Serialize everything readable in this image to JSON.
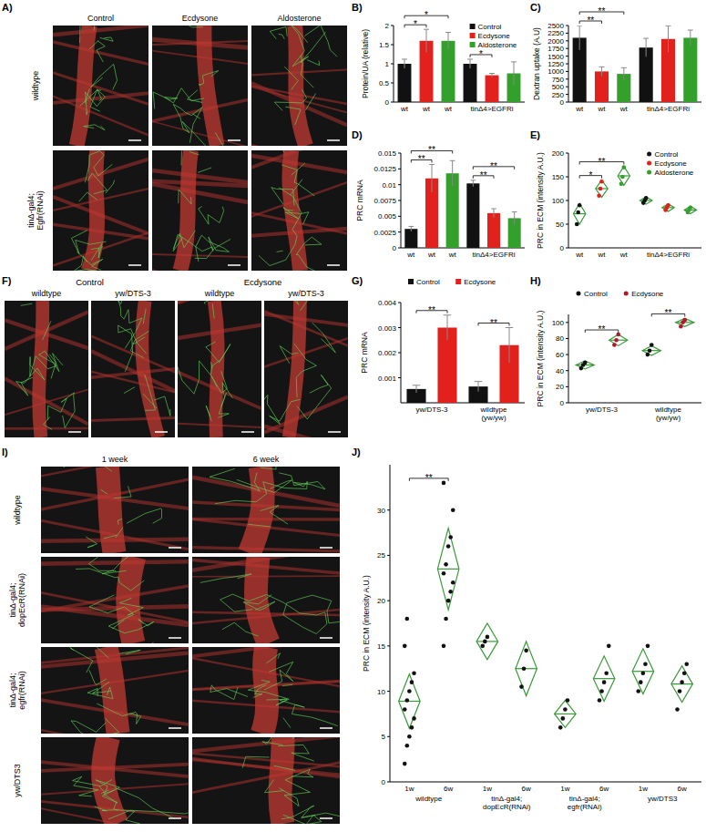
{
  "chart_data": [
    {
      "type": "bar",
      "panel_label": "B)",
      "y_label": "Protein/UA (relative)",
      "categories": [
        "wt",
        "wt",
        "wt",
        null,
        null,
        null
      ],
      "x_groups": [
        {
          "label": "tinΔ4>EGFRi",
          "span": [
            3,
            5
          ]
        }
      ],
      "values": [
        1.0,
        1.6,
        1.6,
        1.0,
        0.7,
        0.75
      ],
      "errors": [
        0.12,
        0.3,
        0.22,
        0.12,
        0.05,
        0.3
      ],
      "colors": [
        "#111111",
        "#e3211c",
        "#33a02c",
        "#111111",
        "#e3211c",
        "#33a02c"
      ],
      "ylim": [
        0,
        2
      ],
      "yticks": [
        0,
        0.5,
        1,
        1.5,
        2
      ],
      "legend": "upper right",
      "legend_items": [
        {
          "name": "Control",
          "color": "#111111"
        },
        {
          "name": "Ecdysone",
          "color": "#e3211c"
        },
        {
          "name": "Aldosterone",
          "color": "#33a02c"
        }
      ],
      "significance": [
        {
          "label": "*",
          "between": [
            0,
            1
          ]
        },
        {
          "label": "*",
          "between": [
            0,
            2
          ]
        },
        {
          "label": "*",
          "between": [
            3,
            4
          ]
        }
      ]
    },
    {
      "type": "bar",
      "panel_label": "C)",
      "y_label": "Dextran uptake (A.U)",
      "categories": [
        "wt",
        "wt",
        "wt",
        null,
        null,
        null
      ],
      "x_groups": [
        {
          "label": "tinΔ4>EGFRi",
          "span": [
            3,
            5
          ]
        }
      ],
      "values": [
        2100,
        1000,
        920,
        1780,
        2060,
        2100
      ],
      "errors": [
        400,
        150,
        200,
        300,
        430,
        250
      ],
      "colors": [
        "#111111",
        "#e3211c",
        "#33a02c",
        "#111111",
        "#e3211c",
        "#33a02c"
      ],
      "ylim": [
        0,
        2500
      ],
      "yticks": [
        0,
        250,
        500,
        750,
        1000,
        1250,
        1500,
        1750,
        2000,
        2250,
        2500
      ],
      "significance": [
        {
          "label": "**",
          "between": [
            0,
            1
          ]
        },
        {
          "label": "**",
          "between": [
            0,
            2
          ]
        }
      ]
    },
    {
      "type": "bar",
      "panel_label": "D)",
      "y_label": "PRC mRNA",
      "categories": [
        "wt",
        "wt",
        "wt",
        null,
        null,
        null
      ],
      "x_groups": [
        {
          "label": "tinΔ4>EGFRi",
          "span": [
            3,
            5
          ]
        }
      ],
      "values": [
        0.003,
        0.011,
        0.0118,
        0.0102,
        0.0055,
        0.0047
      ],
      "errors": [
        0.0004,
        0.0022,
        0.002,
        0.0005,
        0.0007,
        0.001
      ],
      "colors": [
        "#111111",
        "#e3211c",
        "#33a02c",
        "#111111",
        "#e3211c",
        "#33a02c"
      ],
      "ylim": [
        0,
        0.015
      ],
      "yticks": [
        0,
        0.0025,
        0.005,
        0.0075,
        0.01,
        0.0125,
        0.015
      ],
      "significance": [
        {
          "label": "**",
          "between": [
            0,
            1
          ]
        },
        {
          "label": "**",
          "between": [
            0,
            2
          ]
        },
        {
          "label": "**",
          "between": [
            3,
            4
          ]
        },
        {
          "label": "**",
          "between": [
            3,
            5
          ]
        }
      ]
    },
    {
      "type": "dot",
      "panel_label": "E)",
      "y_label": "PRC in ECM (intensity A.U.)",
      "categories": [
        "wt",
        "wt",
        "wt",
        null,
        null,
        null
      ],
      "x_groups": [
        {
          "label": "tinΔ4>EGFRi",
          "span": [
            3,
            5
          ]
        }
      ],
      "color": "#3a9a3a",
      "groups": [
        {
          "color": "#111111",
          "points": [
            50,
            75,
            90
          ],
          "mean": 72,
          "ci": 22
        },
        {
          "color": "#e3211c",
          "points": [
            110,
            125,
            140
          ],
          "mean": 125,
          "ci": 18
        },
        {
          "color": "#33a02c",
          "points": [
            135,
            150,
            170
          ],
          "mean": 152,
          "ci": 20
        },
        {
          "color": "#111111",
          "points": [
            95,
            100,
            105
          ],
          "mean": 100,
          "ci": 8
        },
        {
          "color": "#e3211c",
          "points": [
            80,
            85,
            90
          ],
          "mean": 85,
          "ci": 8
        },
        {
          "color": "#33a02c",
          "points": [
            75,
            80,
            85
          ],
          "mean": 80,
          "ci": 8
        }
      ],
      "ylim": [
        0,
        200
      ],
      "yticks": [
        0,
        50,
        100,
        150,
        200
      ],
      "legend": "upper right",
      "legend_items": [
        {
          "name": "Control",
          "color": "#111111"
        },
        {
          "name": "Ecdysone",
          "color": "#e3211c"
        },
        {
          "name": "Aldosterone",
          "color": "#33a02c"
        }
      ],
      "significance": [
        {
          "label": "*",
          "between": [
            0,
            1
          ]
        },
        {
          "label": "**",
          "between": [
            0,
            2
          ]
        }
      ]
    },
    {
      "type": "bar",
      "panel_label": "G)",
      "y_label": "PRC mRNA",
      "categories": [
        null,
        null,
        null,
        null
      ],
      "x_groups": [
        {
          "label": "yw/DTS-3",
          "span": [
            0,
            1
          ]
        },
        {
          "label": "wildtype\n(yw/yw)",
          "span": [
            2,
            3
          ]
        }
      ],
      "values": [
        0.00055,
        0.003,
        0.00065,
        0.0023
      ],
      "errors": [
        0.00015,
        0.0005,
        0.0002,
        0.0007
      ],
      "colors": [
        "#111111",
        "#e3211c",
        "#111111",
        "#e3211c"
      ],
      "ylim": [
        0,
        0.004
      ],
      "yticks": [
        0.001,
        0.002,
        0.003,
        0.004
      ],
      "legend": "top",
      "legend_items": [
        {
          "name": "Control",
          "color": "#111111"
        },
        {
          "name": "Ecdysone",
          "color": "#e3211c"
        }
      ],
      "significance": [
        {
          "label": "**",
          "between": [
            0,
            1
          ]
        },
        {
          "label": "**",
          "between": [
            2,
            3
          ]
        }
      ]
    },
    {
      "type": "dot",
      "panel_label": "H)",
      "y_label": "PRC in ECM (intensity A.U.)",
      "categories": [
        null,
        null,
        null,
        null
      ],
      "x_groups": [
        {
          "label": "yw/DTS-3",
          "span": [
            0,
            1
          ]
        },
        {
          "label": "wildtype\n(yw/yw)",
          "span": [
            2,
            3
          ]
        }
      ],
      "color": "#3a9a3a",
      "groups": [
        {
          "color": "#111111",
          "points": [
            43,
            47,
            50
          ],
          "mean": 47,
          "ci": 5
        },
        {
          "color": "#b2182b",
          "points": [
            72,
            78,
            85
          ],
          "mean": 78,
          "ci": 7
        },
        {
          "color": "#111111",
          "points": [
            60,
            65,
            72
          ],
          "mean": 65,
          "ci": 6
        },
        {
          "color": "#b2182b",
          "points": [
            95,
            100,
            103
          ],
          "mean": 100,
          "ci": 5
        }
      ],
      "ylim": [
        0,
        110
      ],
      "yticks": [
        0,
        20,
        40,
        60,
        80,
        100
      ],
      "legend": "top",
      "legend_items": [
        {
          "name": "Control",
          "color": "#111111"
        },
        {
          "name": "Ecdysone",
          "color": "#b2182b"
        }
      ],
      "significance": [
        {
          "label": "**",
          "between": [
            0,
            1
          ]
        },
        {
          "label": "**",
          "between": [
            2,
            3
          ]
        }
      ]
    },
    {
      "type": "dot",
      "panel_label": "J)",
      "y_label": "PRC in ECM (intensity A.U.)",
      "categories": [
        "1w",
        "6w",
        "1w",
        "6w",
        "1w",
        "6w",
        "1w",
        "6w"
      ],
      "x_groups": [
        {
          "label": "wildtype",
          "span": [
            0,
            1
          ]
        },
        {
          "label": "tinΔ-gal4;\ndopEcR(RNAi)",
          "span": [
            2,
            3
          ]
        },
        {
          "label": "tinΔ-gal4;\negfr(RNAi)",
          "span": [
            4,
            5
          ]
        },
        {
          "label": "yw/DTS3",
          "span": [
            6,
            7
          ]
        }
      ],
      "color": "#3a9a3a",
      "groups": [
        {
          "color": "#111111",
          "points": [
            2,
            4,
            5,
            6,
            7,
            8,
            9,
            10,
            11,
            12,
            15,
            18
          ],
          "mean": 8.9,
          "ci": 3
        },
        {
          "color": "#111111",
          "points": [
            15,
            18,
            20,
            21,
            22,
            23,
            24,
            26,
            27,
            30,
            33
          ],
          "mean": 23.5,
          "ci": 4.5
        },
        {
          "color": "#111111",
          "points": [
            15,
            15.5,
            16
          ],
          "mean": 15.5,
          "ci": 2
        },
        {
          "color": "#111111",
          "points": [
            10.5,
            12.5,
            14.5
          ],
          "mean": 12.5,
          "ci": 3
        },
        {
          "color": "#111111",
          "points": [
            6,
            7,
            8,
            9
          ],
          "mean": 7.5,
          "ci": 1.5
        },
        {
          "color": "#111111",
          "points": [
            9,
            10,
            11,
            12,
            15
          ],
          "mean": 11.4,
          "ci": 2.5
        },
        {
          "color": "#111111",
          "points": [
            10,
            11,
            12,
            13,
            15
          ],
          "mean": 12.2,
          "ci": 2.5
        },
        {
          "color": "#111111",
          "points": [
            8,
            10,
            11,
            12,
            13
          ],
          "mean": 10.8,
          "ci": 2
        }
      ],
      "ylim": [
        0,
        35
      ],
      "yticks": [
        0,
        5,
        10,
        15,
        20,
        25,
        30
      ],
      "significance": [
        {
          "label": "**",
          "between": [
            0,
            1
          ]
        }
      ]
    }
  ],
  "image_panels": [
    {
      "panel_label": "A)",
      "columns": [
        "Control",
        "Ecdysone",
        "Aldosterone"
      ],
      "rows": [
        "wildtype",
        "tinΔ-gal4;\nEgfr(RNAi)"
      ]
    },
    {
      "panel_label": "F)",
      "column_groups": [
        "Control",
        "Ecdysone"
      ],
      "columns": [
        "wildtype",
        "yw/DTS-3",
        "wildtype",
        "yw/DTS-3"
      ]
    },
    {
      "panel_label": "I)",
      "columns": [
        "1 week",
        "6 week"
      ],
      "rows": [
        "wildtype",
        "tinΔ-gal4;\ndopEcR(RNAi)",
        "tinΔ-gal4;\negfr(RNAi)",
        "yw/DTS3"
      ]
    }
  ]
}
